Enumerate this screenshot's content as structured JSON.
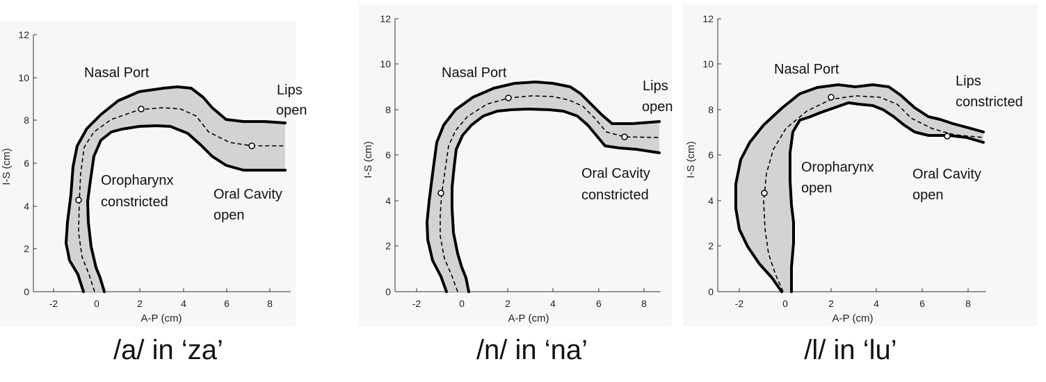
{
  "panels": [
    {
      "caption": "/a/ in ‘za’",
      "xlabel": "A-P (cm)",
      "ylabel": "I-S (cm)",
      "xticks": [
        "-2",
        "0",
        "2",
        "4",
        "6",
        "8"
      ],
      "yticks": [
        "0",
        "2",
        "4",
        "6",
        "8",
        "10",
        "12"
      ],
      "annotations": [
        {
          "id": "nasal",
          "lines": [
            "Nasal Port"
          ]
        },
        {
          "id": "lips",
          "lines": [
            "Lips",
            "open"
          ]
        },
        {
          "id": "oropharynx",
          "lines": [
            "Oropharynx",
            "constricted"
          ]
        },
        {
          "id": "oral",
          "lines": [
            "Oral Cavity",
            "open"
          ]
        }
      ]
    },
    {
      "caption": "/n/ in ‘na’",
      "xlabel": "A-P (cm)",
      "ylabel": "I-S (cm)",
      "xticks": [
        "-2",
        "0",
        "2",
        "4",
        "6",
        "8"
      ],
      "yticks": [
        "0",
        "2",
        "4",
        "6",
        "8",
        "10",
        "12"
      ],
      "annotations": [
        {
          "id": "nasal",
          "lines": [
            "Nasal Port"
          ]
        },
        {
          "id": "lips",
          "lines": [
            "Lips",
            "open"
          ]
        },
        {
          "id": "oral",
          "lines": [
            "Oral Cavity",
            "constricted"
          ]
        }
      ]
    },
    {
      "caption": "/l/ in ‘lu’",
      "xlabel": "A-P (cm)",
      "ylabel": "I-S (cm)",
      "xticks": [
        "-2",
        "0",
        "2",
        "4",
        "6",
        "8"
      ],
      "yticks": [
        "0",
        "2",
        "4",
        "6",
        "8",
        "10",
        "12"
      ],
      "annotations": [
        {
          "id": "nasal",
          "lines": [
            "Nasal Port"
          ]
        },
        {
          "id": "lips",
          "lines": [
            "Lips",
            "constricted"
          ]
        },
        {
          "id": "oropharynx",
          "lines": [
            "Oropharynx",
            "open"
          ]
        },
        {
          "id": "oral",
          "lines": [
            "Oral Cavity",
            "open"
          ]
        }
      ]
    }
  ]
}
